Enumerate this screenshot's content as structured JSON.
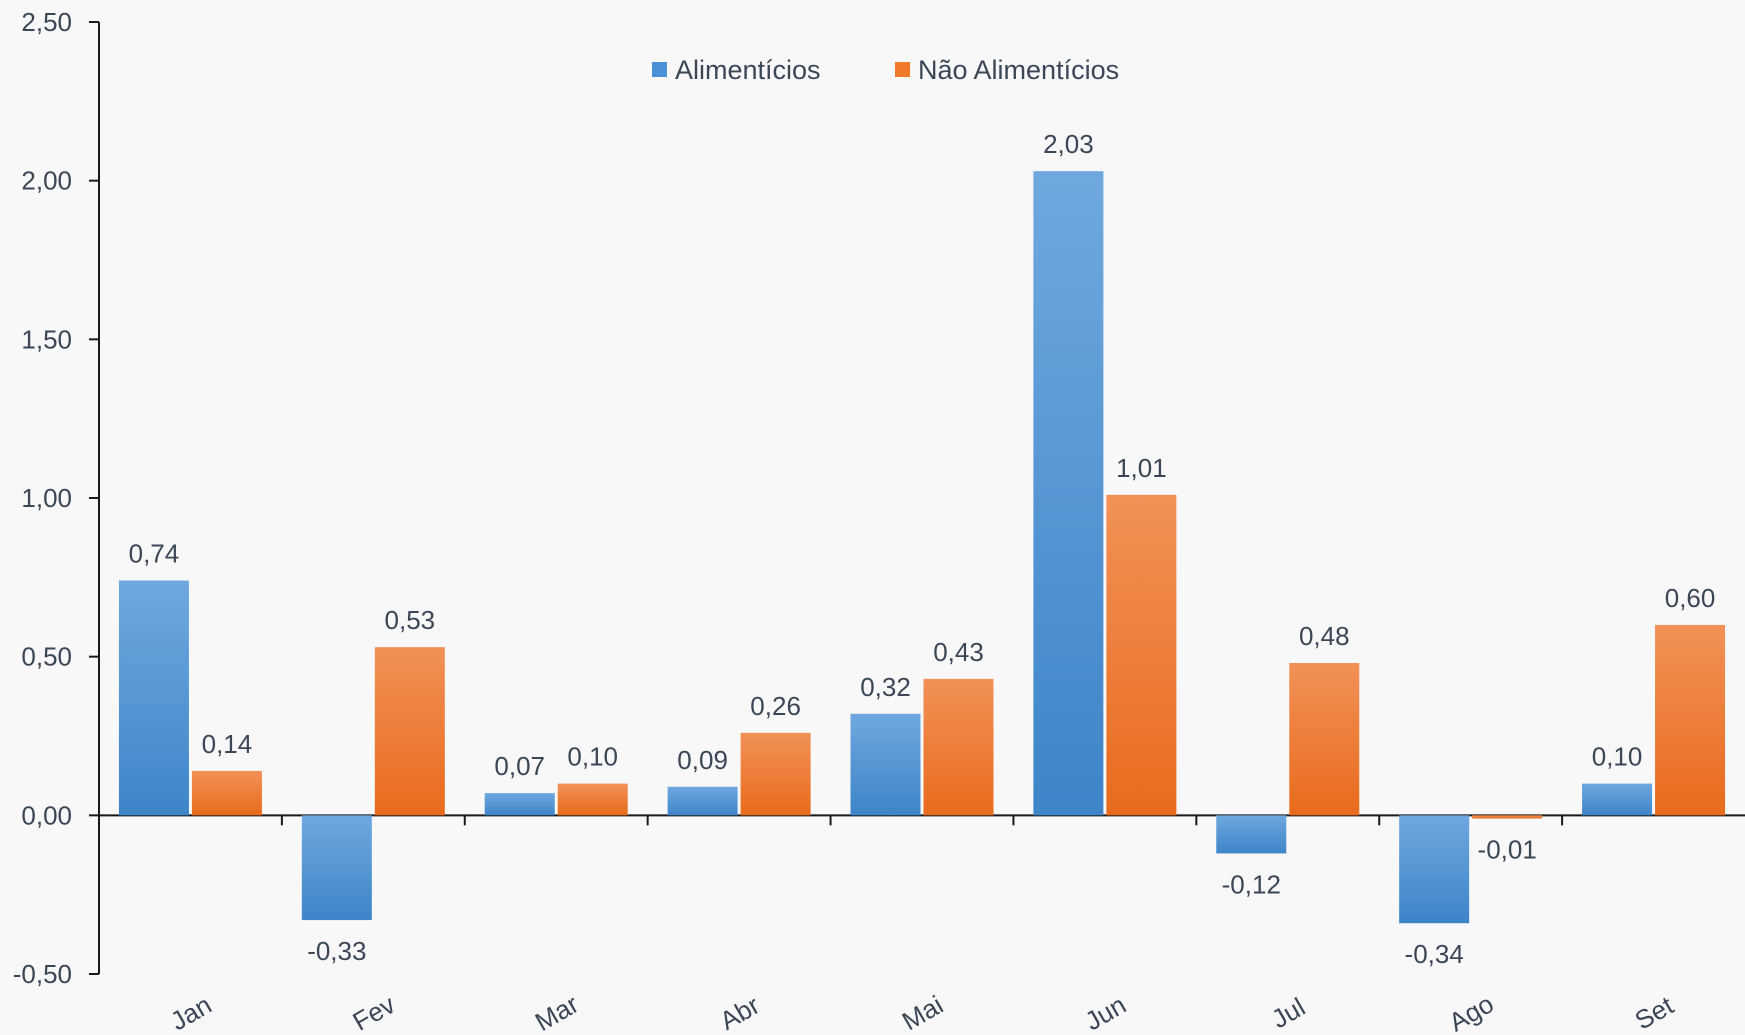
{
  "chart_data": {
    "type": "bar",
    "categories": [
      "Jan",
      "Fev",
      "Mar",
      "Abr",
      "Mai",
      "Jun",
      "Jul",
      "Ago",
      "Set"
    ],
    "series": [
      {
        "name": "Alimentícios",
        "color": "#4a90d6",
        "values": [
          0.74,
          -0.33,
          0.07,
          0.09,
          0.32,
          2.03,
          -0.12,
          -0.34,
          0.1
        ],
        "labels": [
          "0,74",
          "-0,33",
          "0,07",
          "0,09",
          "0,32",
          "2,03",
          "-0,12",
          "-0,34",
          "0,10"
        ]
      },
      {
        "name": "Não Alimentícios",
        "color": "#f07a2a",
        "values": [
          0.14,
          0.53,
          0.1,
          0.26,
          0.43,
          1.01,
          0.48,
          -0.01,
          0.6
        ],
        "labels": [
          "0,14",
          "0,53",
          "0,10",
          "0,26",
          "0,43",
          "1,01",
          "0,48",
          "-0,01",
          "0,60"
        ]
      }
    ],
    "ylim": [
      -0.5,
      2.5
    ],
    "yticks": [
      2.5,
      2.0,
      1.5,
      1.0,
      0.5,
      0.0,
      -0.5
    ],
    "ytick_labels": [
      "2,50",
      "2,00",
      "1,50",
      "1,00",
      "0,50",
      "0,00",
      "-0,50"
    ],
    "legend_position": "top-center",
    "grid": false
  }
}
